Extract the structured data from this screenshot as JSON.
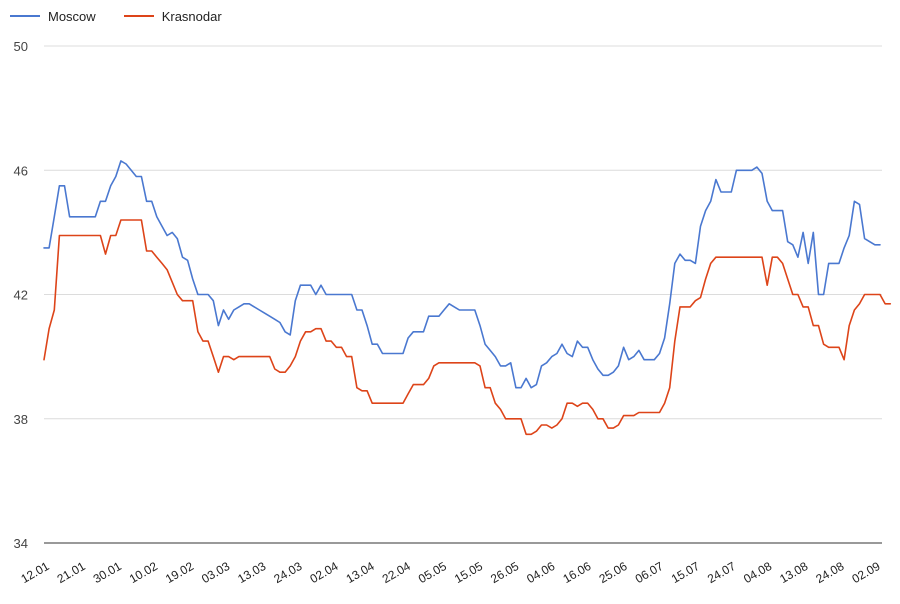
{
  "chart_data": {
    "type": "line",
    "title": "",
    "xlabel": "",
    "ylabel": "",
    "ylim": [
      34,
      50
    ],
    "yticks": [
      34,
      38,
      42,
      46,
      50
    ],
    "grid": true,
    "legend_position": "top-left",
    "xtick_labels": [
      "12.01",
      "21.01",
      "30.01",
      "10.02",
      "19.02",
      "03.03",
      "13.03",
      "24.03",
      "02.04",
      "13.04",
      "22.04",
      "05.05",
      "15.05",
      "26.05",
      "04.06",
      "16.06",
      "25.06",
      "06.07",
      "15.07",
      "24.07",
      "04.08",
      "13.08",
      "24.08",
      "02.09"
    ],
    "series": [
      {
        "name": "Moscow",
        "color": "#4a78d0",
        "values": [
          43.5,
          43.5,
          44.5,
          45.5,
          45.5,
          44.5,
          44.5,
          44.5,
          44.5,
          44.5,
          44.5,
          45.0,
          45.0,
          45.5,
          45.8,
          46.3,
          46.2,
          46.0,
          45.8,
          45.8,
          45.0,
          45.0,
          44.5,
          44.2,
          43.9,
          44.0,
          43.8,
          43.2,
          43.1,
          42.5,
          42.0,
          42.0,
          42.0,
          41.8,
          41.0,
          41.5,
          41.2,
          41.5,
          41.6,
          41.7,
          41.7,
          41.6,
          41.5,
          41.4,
          41.3,
          41.2,
          41.1,
          40.8,
          40.7,
          41.8,
          42.3,
          42.3,
          42.3,
          42.0,
          42.3,
          42.0,
          42.0,
          42.0,
          42.0,
          42.0,
          42.0,
          41.5,
          41.5,
          41.0,
          40.4,
          40.4,
          40.1,
          40.1,
          40.1,
          40.1,
          40.1,
          40.6,
          40.8,
          40.8,
          40.8,
          41.3,
          41.3,
          41.3,
          41.5,
          41.7,
          41.6,
          41.5,
          41.5,
          41.5,
          41.5,
          41.0,
          40.4,
          40.2,
          40.0,
          39.7,
          39.7,
          39.8,
          39.0,
          39.0,
          39.3,
          39.0,
          39.1,
          39.7,
          39.8,
          40.0,
          40.1,
          40.4,
          40.1,
          40.0,
          40.5,
          40.3,
          40.3,
          39.9,
          39.6,
          39.4,
          39.4,
          39.5,
          39.7,
          40.3,
          39.9,
          40.0,
          40.2,
          39.9,
          39.9,
          39.9,
          40.1,
          40.6,
          41.7,
          43.0,
          43.3,
          43.1,
          43.1,
          43.0,
          44.2,
          44.7,
          45.0,
          45.7,
          45.3,
          45.3,
          45.3,
          46.0,
          46.0,
          46.0,
          46.0,
          46.1,
          45.9,
          45.0,
          44.7,
          44.7,
          44.7,
          43.7,
          43.6,
          43.2,
          44.0,
          43.0,
          44.0,
          42.0,
          42.0,
          43.0,
          43.0,
          43.0,
          43.5,
          43.9,
          45.0,
          44.9,
          43.8,
          43.7,
          43.6,
          43.6
        ]
      },
      {
        "name": "Krasnodar",
        "color": "#dd4419",
        "values": [
          39.9,
          40.9,
          41.5,
          43.9,
          43.9,
          43.9,
          43.9,
          43.9,
          43.9,
          43.9,
          43.9,
          43.9,
          43.3,
          43.9,
          43.9,
          44.4,
          44.4,
          44.4,
          44.4,
          44.4,
          43.4,
          43.4,
          43.2,
          43.0,
          42.8,
          42.4,
          42.0,
          41.8,
          41.8,
          41.8,
          40.8,
          40.5,
          40.5,
          40.0,
          39.5,
          40.0,
          40.0,
          39.9,
          40.0,
          40.0,
          40.0,
          40.0,
          40.0,
          40.0,
          40.0,
          39.6,
          39.5,
          39.5,
          39.7,
          40.0,
          40.5,
          40.8,
          40.8,
          40.9,
          40.9,
          40.5,
          40.5,
          40.3,
          40.3,
          40.0,
          40.0,
          39.0,
          38.9,
          38.9,
          38.5,
          38.5,
          38.5,
          38.5,
          38.5,
          38.5,
          38.5,
          38.8,
          39.1,
          39.1,
          39.1,
          39.3,
          39.7,
          39.8,
          39.8,
          39.8,
          39.8,
          39.8,
          39.8,
          39.8,
          39.8,
          39.7,
          39.0,
          39.0,
          38.5,
          38.3,
          38.0,
          38.0,
          38.0,
          38.0,
          37.5,
          37.5,
          37.6,
          37.8,
          37.8,
          37.7,
          37.8,
          38.0,
          38.5,
          38.5,
          38.4,
          38.5,
          38.5,
          38.3,
          38.0,
          38.0,
          37.7,
          37.7,
          37.8,
          38.1,
          38.1,
          38.1,
          38.2,
          38.2,
          38.2,
          38.2,
          38.2,
          38.5,
          39.0,
          40.5,
          41.6,
          41.6,
          41.6,
          41.8,
          41.9,
          42.5,
          43.0,
          43.2,
          43.2,
          43.2,
          43.2,
          43.2,
          43.2,
          43.2,
          43.2,
          43.2,
          43.2,
          42.3,
          43.2,
          43.2,
          43.0,
          42.5,
          42.0,
          42.0,
          41.6,
          41.6,
          41.0,
          41.0,
          40.4,
          40.3,
          40.3,
          40.3,
          39.9,
          41.0,
          41.5,
          41.7,
          42.0,
          42.0,
          42.0,
          42.0,
          41.7,
          41.7
        ]
      }
    ]
  }
}
